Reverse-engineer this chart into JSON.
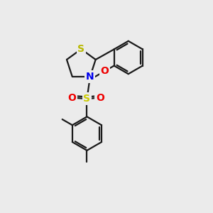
{
  "background_color": "#ebebeb",
  "bond_color": "#1a1a1a",
  "bond_width": 1.6,
  "atom_colors": {
    "S_thiaz": "#b8b800",
    "N": "#0000ee",
    "S_sulfone": "#cccc00",
    "O": "#ee0000",
    "C": "#1a1a1a"
  },
  "font_size_atoms": 10,
  "font_size_methyl": 7.5
}
